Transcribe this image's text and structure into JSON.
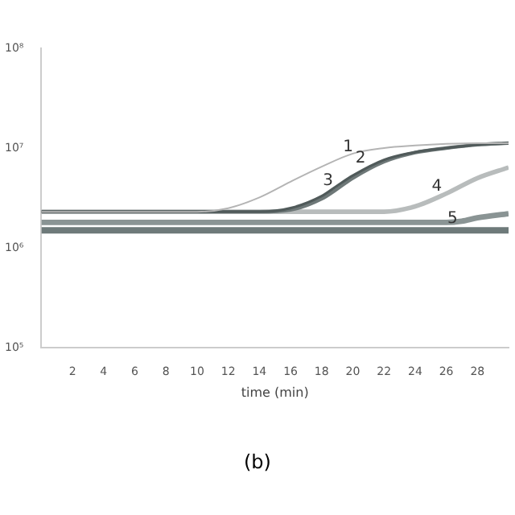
{
  "chart_data": {
    "type": "line",
    "xlabel": "time (min)",
    "log": "y",
    "grid": false,
    "legend": false,
    "marker": "none",
    "line_style": "solid",
    "xlim": [
      0,
      30
    ],
    "xticks": [
      2,
      4,
      6,
      8,
      10,
      12,
      14,
      16,
      18,
      20,
      22,
      24,
      26,
      28
    ],
    "ylim": [
      100000,
      100000000
    ],
    "yticks": [
      {
        "value": 100000,
        "label": "10⁵"
      },
      {
        "value": 1000000,
        "label": "10⁶"
      },
      {
        "value": 10000000,
        "label": "10⁷"
      },
      {
        "value": 100000000,
        "label": "10⁸"
      }
    ],
    "series": [
      {
        "color": "#b4b4b4",
        "x": [
          0,
          10,
          12,
          14,
          16,
          18,
          20,
          22,
          24,
          26,
          28,
          30
        ],
        "values": [
          2300000,
          2300000,
          2500000,
          3200000,
          4600000,
          6500000,
          8800000,
          10000000,
          10600000,
          11000000,
          11200000,
          11200000
        ]
      },
      {
        "color": "#505a5a",
        "x": [
          0,
          14,
          16,
          18,
          19,
          20,
          22,
          24,
          26,
          28,
          30
        ],
        "values": [
          2300000,
          2300000,
          2500000,
          3300000,
          4200000,
          5300000,
          7600000,
          9100000,
          10000000,
          10800000,
          11200000
        ]
      },
      {
        "color": "#6e7878",
        "x": [
          0,
          14,
          16,
          18,
          19,
          20,
          22,
          24,
          26,
          28,
          30
        ],
        "values": [
          2300000,
          2300000,
          2400000,
          3100000,
          3900000,
          5000000,
          7300000,
          9000000,
          10000000,
          10800000,
          11200000
        ]
      },
      {
        "color": "#b8bcbc",
        "x": [
          0,
          22,
          24,
          26,
          28,
          30
        ],
        "values": [
          2300000,
          2300000,
          2600000,
          3500000,
          5000000,
          6400000
        ]
      },
      {
        "color": "#8a9494",
        "x": [
          0,
          26,
          27,
          28,
          30
        ],
        "values": [
          1800000,
          1800000,
          1850000,
          2000000,
          2200000
        ]
      },
      {
        "color": "#6e7a7a",
        "x": [
          0,
          30
        ],
        "values": [
          1500000,
          1500000
        ]
      }
    ],
    "annotations": [
      {
        "text": "1",
        "x": 19.7,
        "y": 8500000
      },
      {
        "text": "2",
        "x": 20.5,
        "y": 6600000
      },
      {
        "text": "3",
        "x": 18.4,
        "y": 3900000
      },
      {
        "text": "4",
        "x": 25.4,
        "y": 3400000
      },
      {
        "text": "5",
        "x": 26.4,
        "y": 1630000
      },
      "(b)"
    ]
  }
}
